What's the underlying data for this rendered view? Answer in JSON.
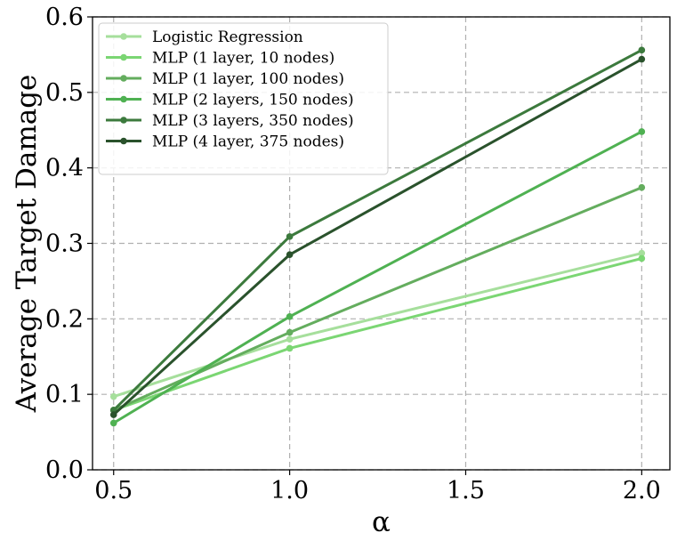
{
  "chart_data": {
    "type": "line",
    "title": "",
    "xlabel": "α",
    "ylabel": "Average Target Damage",
    "x": [
      0.5,
      1.0,
      2.0
    ],
    "xlim": [
      0.44,
      2.08
    ],
    "ylim": [
      0.0,
      0.6
    ],
    "xticks": [
      0.5,
      1.0,
      1.5,
      2.0
    ],
    "xtick_labels": [
      "0.5",
      "1.0",
      "1.5",
      "2.0"
    ],
    "yticks": [
      0.0,
      0.1,
      0.2,
      0.3,
      0.4,
      0.5,
      0.6
    ],
    "ytick_labels": [
      "0.0",
      "0.1",
      "0.2",
      "0.3",
      "0.4",
      "0.5",
      "0.6"
    ],
    "grid": true,
    "legend_position": "top-left",
    "series": [
      {
        "name": "Logistic Regression",
        "color": "#a6df9c",
        "values": [
          0.097,
          0.173,
          0.287
        ]
      },
      {
        "name": "MLP (1 layer, 10 nodes)",
        "color": "#7bd673",
        "values": [
          0.079,
          0.161,
          0.28
        ]
      },
      {
        "name": "MLP (1 layer, 100 nodes)",
        "color": "#64ad5e",
        "values": [
          0.079,
          0.182,
          0.374
        ]
      },
      {
        "name": "MLP (2 layers, 150 nodes)",
        "color": "#4fb152",
        "values": [
          0.062,
          0.203,
          0.448
        ]
      },
      {
        "name": "MLP (3 layers, 350 nodes)",
        "color": "#3c7a3d",
        "values": [
          0.079,
          0.309,
          0.556
        ]
      },
      {
        "name": "MLP (4 layer, 375 nodes)",
        "color": "#2a522c",
        "values": [
          0.073,
          0.285,
          0.544
        ]
      }
    ]
  }
}
